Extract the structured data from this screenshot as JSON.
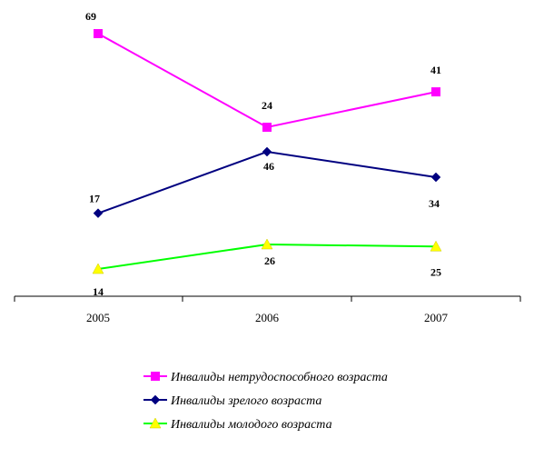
{
  "chart_data": {
    "type": "line",
    "categories": [
      "2005",
      "2006",
      "2007"
    ],
    "grid": false,
    "legend_position": "bottom",
    "series": [
      {
        "name": "Инвалиды нетрудоспособного возраста",
        "values": [
          69,
          24,
          41
        ],
        "color": "#ff00ff",
        "marker": "square"
      },
      {
        "name": "Инвалиды зрелого возраста",
        "values": [
          17,
          46,
          34
        ],
        "color": "#000080",
        "marker": "diamond"
      },
      {
        "name": "Инвалиды молодого возраста",
        "values": [
          14,
          26,
          25
        ],
        "color": "#00ff00",
        "marker": "triangle",
        "marker_color": "#ffff00"
      }
    ]
  }
}
